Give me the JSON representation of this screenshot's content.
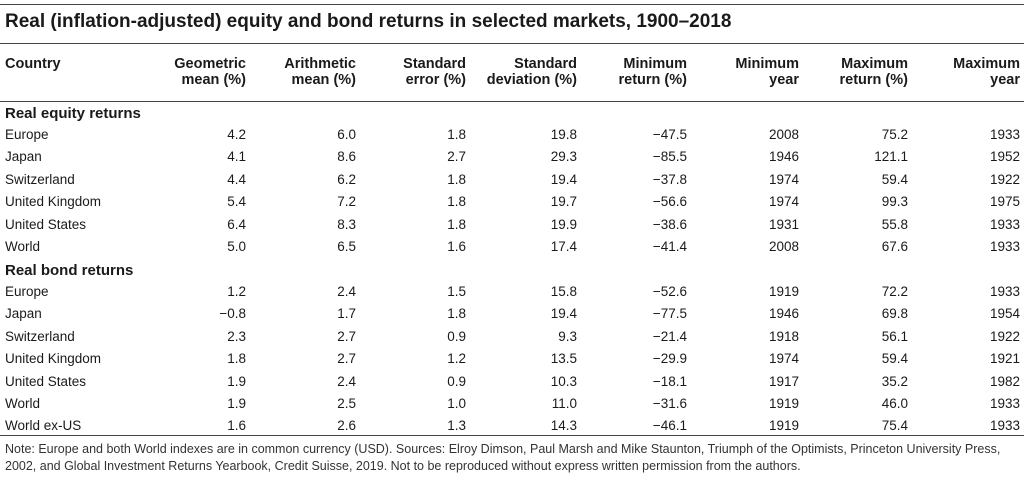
{
  "title": "Real (inflation-adjusted) equity and bond returns in selected markets, 1900–2018",
  "headers": [
    {
      "line1": "Country",
      "line2": ""
    },
    {
      "line1": "Geometric",
      "line2": "mean (%)"
    },
    {
      "line1": "Arithmetic",
      "line2": "mean (%)"
    },
    {
      "line1": "Standard",
      "line2": "error (%)"
    },
    {
      "line1": "Standard",
      "line2": "deviation (%)"
    },
    {
      "line1": "Minimum",
      "line2": "return (%)"
    },
    {
      "line1": "Minimum",
      "line2": "year"
    },
    {
      "line1": "Maximum",
      "line2": "return (%)"
    },
    {
      "line1": "Maximum",
      "line2": "year"
    }
  ],
  "sections": [
    {
      "label": "Real equity returns",
      "rows": [
        [
          "Europe",
          "4.2",
          "6.0",
          "1.8",
          "19.8",
          "−47.5",
          "2008",
          "75.2",
          "1933"
        ],
        [
          "Japan",
          "4.1",
          "8.6",
          "2.7",
          "29.3",
          "−85.5",
          "1946",
          "121.1",
          "1952"
        ],
        [
          "Switzerland",
          "4.4",
          "6.2",
          "1.8",
          "19.4",
          "−37.8",
          "1974",
          "59.4",
          "1922"
        ],
        [
          "United Kingdom",
          "5.4",
          "7.2",
          "1.8",
          "19.7",
          "−56.6",
          "1974",
          "99.3",
          "1975"
        ],
        [
          "United States",
          "6.4",
          "8.3",
          "1.8",
          "19.9",
          "−38.6",
          "1931",
          "55.8",
          "1933"
        ],
        [
          "World",
          "5.0",
          "6.5",
          "1.6",
          "17.4",
          "−41.4",
          "2008",
          "67.6",
          "1933"
        ]
      ]
    },
    {
      "label": "Real bond returns",
      "rows": [
        [
          "Europe",
          "1.2",
          "2.4",
          "1.5",
          "15.8",
          "−52.6",
          "1919",
          "72.2",
          "1933"
        ],
        [
          "Japan",
          "−0.8",
          "1.7",
          "1.8",
          "19.4",
          "−77.5",
          "1946",
          "69.8",
          "1954"
        ],
        [
          "Switzerland",
          "2.3",
          "2.7",
          "0.9",
          "9.3",
          "−21.4",
          "1918",
          "56.1",
          "1922"
        ],
        [
          "United Kingdom",
          "1.8",
          "2.7",
          "1.2",
          "13.5",
          "−29.9",
          "1974",
          "59.4",
          "1921"
        ],
        [
          "United States",
          "1.9",
          "2.4",
          "0.9",
          "10.3",
          "−18.1",
          "1917",
          "35.2",
          "1982"
        ],
        [
          "World",
          "1.9",
          "2.5",
          "1.0",
          "11.0",
          "−31.6",
          "1919",
          "46.0",
          "1933"
        ],
        [
          "World ex-US",
          "1.6",
          "2.6",
          "1.3",
          "14.3",
          "−46.1",
          "1919",
          "75.4",
          "1933"
        ]
      ]
    }
  ],
  "note": "Note: Europe and both World indexes are in common currency (USD).  Sources: Elroy Dimson, Paul Marsh and Mike Staunton, Triumph of the Optimists, Princeton University Press, 2002, and Global Investment Returns Yearbook, Credit Suisse, 2019. Not to be reproduced without express written permission from the authors."
}
